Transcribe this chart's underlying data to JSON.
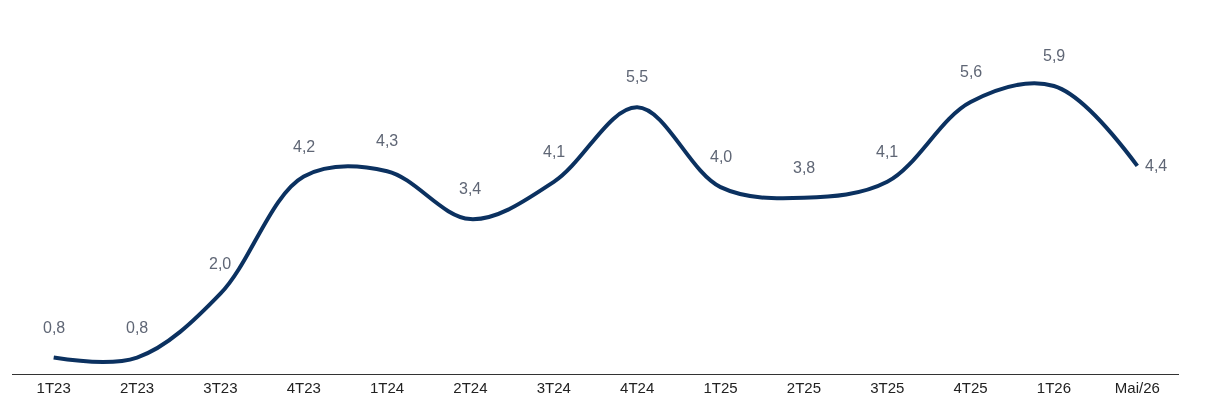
{
  "chart_data": {
    "type": "line",
    "categories": [
      "1T23",
      "2T23",
      "3T23",
      "4T23",
      "1T24",
      "2T24",
      "3T24",
      "4T24",
      "1T25",
      "2T25",
      "3T25",
      "4T25",
      "1T26",
      "Mai/26"
    ],
    "series": [
      {
        "color": "#0b3160",
        "values": [
          0.8,
          0.8,
          2.0,
          4.2,
          4.3,
          3.4,
          4.1,
          5.5,
          4.0,
          3.8,
          4.1,
          5.6,
          5.9,
          4.4
        ],
        "value_labels": [
          "0,8",
          "0,8",
          "2,0",
          "4,2",
          "4,3",
          "3,4",
          "4,1",
          "5,5",
          "4,0",
          "3,8",
          "4,1",
          "5,6",
          "5,9",
          "4,4"
        ]
      }
    ],
    "marker": "none",
    "line_style": "solid"
  }
}
